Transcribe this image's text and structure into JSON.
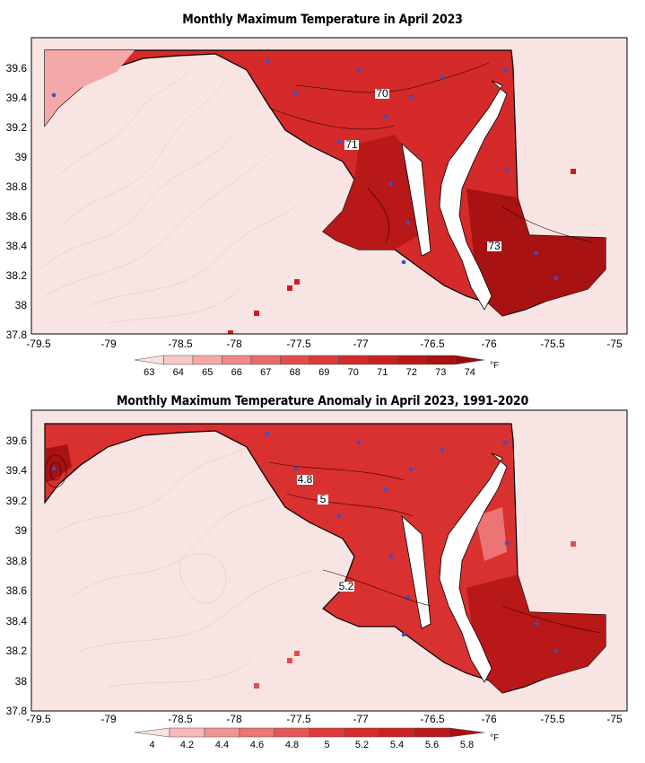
{
  "maps": [
    {
      "title": "Monthly Maximum Temperature in April 2023",
      "x_ticks": [
        "-79.5",
        "-79",
        "-78.5",
        "-78",
        "-77.5",
        "-77",
        "-76.5",
        "-76",
        "-75.5",
        "-75"
      ],
      "y_ticks": [
        "39.6",
        "39.4",
        "39.2",
        "39",
        "38.8",
        "38.6",
        "38.4",
        "38.2",
        "38",
        "37.8"
      ],
      "colorbar_labels": [
        "63",
        "64",
        "65",
        "66",
        "67",
        "68",
        "69",
        "70",
        "71",
        "72",
        "73",
        "74"
      ],
      "colorbar_colors": [
        "#fbe0e0",
        "#f8c8c8",
        "#f4a8a8",
        "#f08888",
        "#ea6a6a",
        "#e44c4c",
        "#de3a38",
        "#d42a2a",
        "#c82020",
        "#b81818",
        "#a81212",
        "#960c0c"
      ],
      "unit": "°F",
      "contour_labels": [
        "70",
        "71",
        "73"
      ]
    },
    {
      "title": "Monthly Maximum Temperature Anomaly in April 2023, 1991-2020",
      "x_ticks": [
        "-79.5",
        "-79",
        "-78.5",
        "-78",
        "-77.5",
        "-77",
        "-76.5",
        "-76",
        "-75.5",
        "-75"
      ],
      "y_ticks": [
        "39.6",
        "39.4",
        "39.2",
        "39",
        "38.8",
        "38.6",
        "38.4",
        "38.2",
        "38",
        "37.8"
      ],
      "colorbar_labels": [
        "4",
        "4.2",
        "4.4",
        "4.6",
        "4.8",
        "5",
        "5.2",
        "5.4",
        "5.6",
        "5.8"
      ],
      "colorbar_colors": [
        "#fbe0e0",
        "#f6b8b8",
        "#f19494",
        "#ec7474",
        "#e65656",
        "#e03c3c",
        "#d92c2c",
        "#cc2222",
        "#bc1a1a",
        "#a81212"
      ],
      "unit": "°F",
      "contour_labels": [
        "4.8",
        "5",
        "5.2"
      ]
    }
  ]
}
